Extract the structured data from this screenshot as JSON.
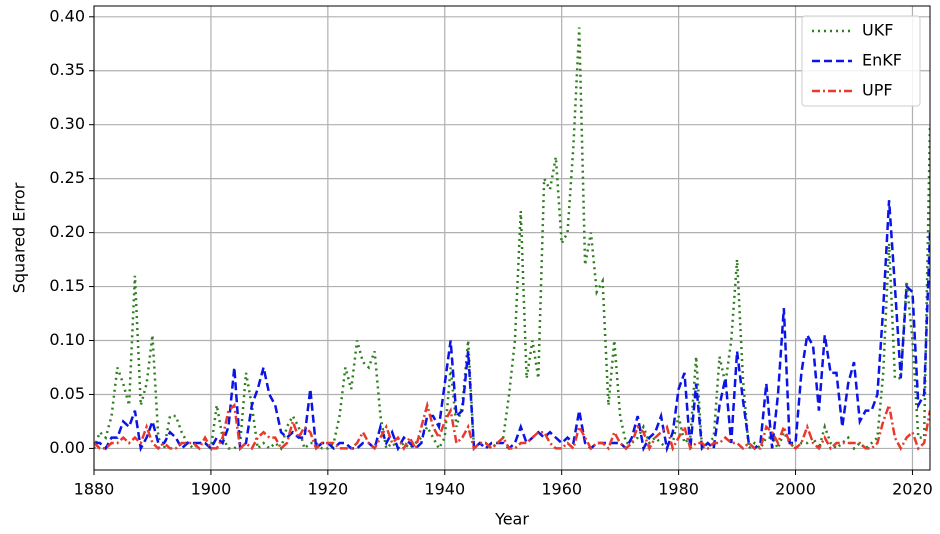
{
  "chart_data": {
    "type": "line",
    "xlabel": "Year",
    "ylabel": "Squared Error",
    "x": [
      1880,
      1881,
      1882,
      1883,
      1884,
      1885,
      1886,
      1887,
      1888,
      1889,
      1890,
      1891,
      1892,
      1893,
      1894,
      1895,
      1896,
      1897,
      1898,
      1899,
      1900,
      1901,
      1902,
      1903,
      1904,
      1905,
      1906,
      1907,
      1908,
      1909,
      1910,
      1911,
      1912,
      1913,
      1914,
      1915,
      1916,
      1917,
      1918,
      1919,
      1920,
      1921,
      1922,
      1923,
      1924,
      1925,
      1926,
      1927,
      1928,
      1929,
      1930,
      1931,
      1932,
      1933,
      1934,
      1935,
      1936,
      1937,
      1938,
      1939,
      1940,
      1941,
      1942,
      1943,
      1944,
      1945,
      1946,
      1947,
      1948,
      1949,
      1950,
      1951,
      1952,
      1953,
      1954,
      1955,
      1956,
      1957,
      1958,
      1959,
      1960,
      1961,
      1962,
      1963,
      1964,
      1965,
      1966,
      1967,
      1968,
      1969,
      1970,
      1971,
      1972,
      1973,
      1974,
      1975,
      1976,
      1977,
      1978,
      1979,
      1980,
      1981,
      1982,
      1983,
      1984,
      1985,
      1986,
      1987,
      1988,
      1989,
      1990,
      1991,
      1992,
      1993,
      1994,
      1995,
      1996,
      1997,
      1998,
      1999,
      2000,
      2001,
      2002,
      2003,
      2004,
      2005,
      2006,
      2007,
      2008,
      2009,
      2010,
      2011,
      2012,
      2013,
      2014,
      2015,
      2016,
      2017,
      2018,
      2019,
      2020,
      2021,
      2022,
      2023
    ],
    "series": [
      {
        "name": "UKF",
        "color": "#2e7d1f",
        "linestyle": "dotted",
        "values": [
          0,
          0.015,
          0.01,
          0.03,
          0.075,
          0.06,
          0.04,
          0.16,
          0.04,
          0.06,
          0.105,
          0.01,
          0,
          0.03,
          0.03,
          0.015,
          0.005,
          0,
          0.005,
          0.005,
          0,
          0.04,
          0.01,
          0,
          0,
          0.005,
          0.07,
          0.04,
          0,
          0.005,
          0,
          0.005,
          0,
          0.02,
          0.03,
          0.02,
          0,
          0.005,
          0.005,
          0,
          0,
          0.005,
          0.03,
          0.075,
          0.055,
          0.1,
          0.08,
          0.075,
          0.09,
          0.03,
          0,
          0.005,
          0,
          0.005,
          0,
          0.005,
          0.01,
          0.02,
          0.01,
          0,
          0.01,
          0.075,
          0.02,
          0.04,
          0.1,
          0,
          0.005,
          0.005,
          0,
          0.005,
          0.01,
          0.05,
          0.1,
          0.22,
          0.065,
          0.1,
          0.065,
          0.25,
          0.24,
          0.27,
          0.19,
          0.2,
          0.28,
          0.39,
          0.17,
          0.2,
          0.145,
          0.155,
          0.04,
          0.1,
          0.03,
          0.005,
          0.005,
          0.01,
          0.02,
          0.005,
          0.01,
          0.005,
          0,
          0.005,
          0.03,
          0.005,
          0.01,
          0.085,
          0,
          0.005,
          0.01,
          0.085,
          0.06,
          0.1,
          0.175,
          0.065,
          0,
          0.005,
          0,
          0.01,
          0.01,
          0,
          0.015,
          0.005,
          0,
          0.005,
          0.005,
          0.01,
          0,
          0.02,
          0.005,
          0,
          0.005,
          0.01,
          0,
          0.005,
          0,
          0.005,
          0.01,
          0.07,
          0.19,
          0.065,
          0.065,
          0.155,
          0.1,
          0.01,
          0.01,
          0.3
        ]
      },
      {
        "name": "EnKF",
        "color": "#0a14e6",
        "linestyle": "dashed",
        "values": [
          0.005,
          0.005,
          0,
          0.01,
          0.01,
          0.025,
          0.02,
          0.035,
          0,
          0.01,
          0.025,
          0.005,
          0.005,
          0.015,
          0.01,
          0,
          0.005,
          0.005,
          0.005,
          0.005,
          0,
          0.01,
          0.005,
          0.02,
          0.075,
          0,
          0.005,
          0.04,
          0.055,
          0.075,
          0.05,
          0.04,
          0.015,
          0.01,
          0.015,
          0.01,
          0.01,
          0.055,
          0,
          0.005,
          0.005,
          0,
          0.005,
          0.005,
          0,
          0,
          0.005,
          0.005,
          0,
          0.02,
          0.005,
          0.015,
          0,
          0.01,
          0.005,
          0,
          0.005,
          0.03,
          0.03,
          0.02,
          0.06,
          0.1,
          0.03,
          0.035,
          0.09,
          0,
          0.005,
          0,
          0.005,
          0.005,
          0.005,
          0,
          0.005,
          0.02,
          0.005,
          0.01,
          0.015,
          0.01,
          0.015,
          0.01,
          0.005,
          0.01,
          0.005,
          0.035,
          0.005,
          0,
          0.005,
          0.005,
          0.005,
          0.005,
          0.005,
          0,
          0.01,
          0.03,
          0,
          0.01,
          0.015,
          0.03,
          0,
          0.015,
          0.055,
          0.07,
          0,
          0.06,
          0,
          0.005,
          0,
          0.04,
          0.065,
          0.005,
          0.09,
          0.045,
          0.005,
          0,
          0.005,
          0.06,
          0,
          0.05,
          0.13,
          0.005,
          0.005,
          0.07,
          0.105,
          0.095,
          0.035,
          0.105,
          0.07,
          0.07,
          0.02,
          0.06,
          0.08,
          0.025,
          0.035,
          0.035,
          0.05,
          0.13,
          0.23,
          0.15,
          0.065,
          0.15,
          0.145,
          0.04,
          0.05,
          0.2
        ]
      },
      {
        "name": "UPF",
        "color": "#e8392a",
        "linestyle": "dashdot",
        "values": [
          0.005,
          0,
          0,
          0.005,
          0.005,
          0.01,
          0.005,
          0.01,
          0.005,
          0.02,
          0.005,
          0,
          0.005,
          0,
          0,
          0.005,
          0.005,
          0.005,
          0,
          0.01,
          0,
          0,
          0.01,
          0.035,
          0.04,
          0,
          0.005,
          0,
          0.01,
          0.015,
          0.01,
          0.01,
          0,
          0.005,
          0.025,
          0.01,
          0.02,
          0.015,
          0,
          0.005,
          0.005,
          0.005,
          0,
          0,
          0,
          0.005,
          0.015,
          0.005,
          0,
          0.01,
          0.02,
          0.005,
          0.01,
          0,
          0.01,
          0,
          0.02,
          0.04,
          0.02,
          0.01,
          0.025,
          0.035,
          0.005,
          0.01,
          0.02,
          0,
          0.005,
          0.005,
          0,
          0.005,
          0.01,
          0,
          0,
          0.005,
          0.005,
          0.01,
          0.015,
          0.015,
          0.005,
          0,
          0,
          0.005,
          0,
          0.02,
          0.01,
          0,
          0.005,
          0.005,
          0,
          0.015,
          0.005,
          0,
          0.005,
          0.02,
          0.015,
          0,
          0.01,
          0.015,
          0.02,
          0,
          0.01,
          0.02,
          0,
          0.005,
          0.005,
          0,
          0.005,
          0.005,
          0.01,
          0.005,
          0.005,
          0,
          0.005,
          0,
          0,
          0.02,
          0.015,
          0.005,
          0.02,
          0.005,
          0,
          0.005,
          0.02,
          0.005,
          0,
          0.01,
          0,
          0.005,
          0.005,
          0.005,
          0.005,
          0.005,
          0,
          0,
          0.005,
          0.025,
          0.04,
          0.01,
          0,
          0.01,
          0.015,
          0,
          0.005,
          0.035
        ]
      }
    ],
    "xlim": [
      1880,
      2023
    ],
    "ylim": [
      -0.02,
      0.41
    ],
    "xticks": [
      1880,
      1900,
      1920,
      1940,
      1960,
      1980,
      2000,
      2020
    ],
    "yticks": [
      {
        "value": 0,
        "label": "0.00"
      },
      {
        "value": 0.05,
        "label": "0.05"
      },
      {
        "value": 0.1,
        "label": "0.10"
      },
      {
        "value": 0.15,
        "label": "0.15"
      },
      {
        "value": 0.2,
        "label": "0.20"
      },
      {
        "value": 0.25,
        "label": "0.25"
      },
      {
        "value": 0.3,
        "label": "0.30"
      },
      {
        "value": 0.35,
        "label": "0.35"
      },
      {
        "value": 0.4,
        "label": "0.40"
      }
    ],
    "grid": true,
    "legend": "upper right"
  }
}
